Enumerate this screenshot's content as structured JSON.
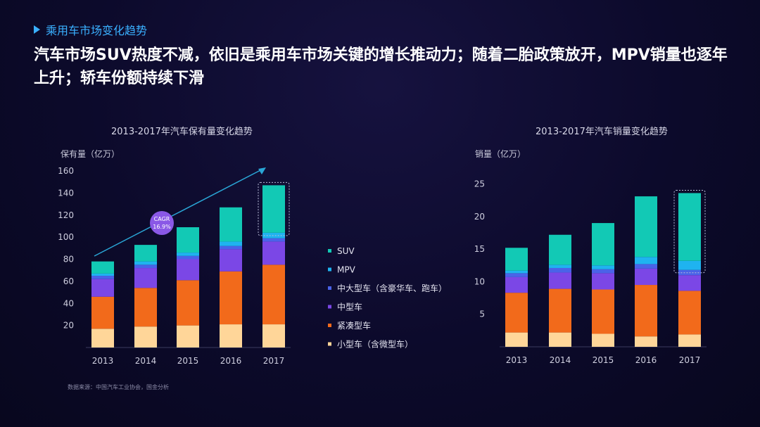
{
  "header": {
    "section": "乘用车市场变化趋势",
    "headline": "汽车市场SUV热度不减，依旧是乘用车市场关键的增长推动力；随着二胎政策放开，MPV销量也逐年上升；轿车份额持续下滑"
  },
  "colors": {
    "SUV": "#12c9b5",
    "MPV": "#1fb3f0",
    "large": "#4a63e8",
    "mid": "#7b47e6",
    "compact": "#f26a1b",
    "small": "#ffd699",
    "accent": "#3ab0ff"
  },
  "footer": {
    "source": "数据来源：中国汽车工业协会，国金分析"
  },
  "chart_data": [
    {
      "type": "bar",
      "stacked": true,
      "title": "2013-2017年汽车保有量变化趋势",
      "ylabel": "保有量（亿万）",
      "categories": [
        "2013",
        "2014",
        "2015",
        "2016",
        "2017"
      ],
      "ylim": [
        0,
        160
      ],
      "yticks": [
        20,
        40,
        60,
        80,
        100,
        120,
        140,
        160
      ],
      "series": [
        {
          "name": "小型车（含微型车）",
          "key": "small",
          "values": [
            17,
            19,
            20,
            21,
            21
          ]
        },
        {
          "name": "紧凑型车",
          "key": "compact",
          "values": [
            29,
            35,
            41,
            48,
            54
          ]
        },
        {
          "name": "中型车",
          "key": "mid",
          "values": [
            16,
            18,
            19,
            20,
            21
          ]
        },
        {
          "name": "中大型车（含豪华车、跑车）",
          "key": "large",
          "values": [
            3,
            3,
            3,
            3,
            3
          ]
        },
        {
          "name": "MPV",
          "key": "MPV",
          "values": [
            2,
            3,
            3,
            4,
            5
          ]
        },
        {
          "name": "SUV",
          "key": "SUV",
          "values": [
            11,
            15,
            23,
            31,
            43
          ]
        }
      ],
      "annotation": {
        "label": "CAGR",
        "value": "16.9%"
      }
    },
    {
      "type": "bar",
      "stacked": true,
      "title": "2013-2017年汽车销量变化趋势",
      "ylabel": "销量（亿万）",
      "categories": [
        "2013",
        "2014",
        "2015",
        "2016",
        "2017"
      ],
      "ylim": [
        0,
        27
      ],
      "yticks": [
        5,
        10,
        15,
        20,
        25
      ],
      "series": [
        {
          "name": "小型车（含微型车）",
          "key": "small",
          "values": [
            2.2,
            2.2,
            2.0,
            1.6,
            1.9
          ]
        },
        {
          "name": "紧凑型车",
          "key": "compact",
          "values": [
            6.1,
            6.7,
            6.8,
            7.9,
            6.7
          ]
        },
        {
          "name": "中型车",
          "key": "mid",
          "values": [
            2.4,
            2.5,
            2.5,
            2.5,
            2.4
          ]
        },
        {
          "name": "中大型车（含豪华车、跑车）",
          "key": "large",
          "values": [
            0.6,
            0.7,
            0.6,
            0.7,
            0.8
          ]
        },
        {
          "name": "MPV",
          "key": "MPV",
          "values": [
            0.4,
            0.5,
            0.6,
            1.1,
            1.4
          ]
        },
        {
          "name": "SUV",
          "key": "SUV",
          "values": [
            3.5,
            4.6,
            6.5,
            9.3,
            10.4
          ]
        }
      ]
    }
  ]
}
